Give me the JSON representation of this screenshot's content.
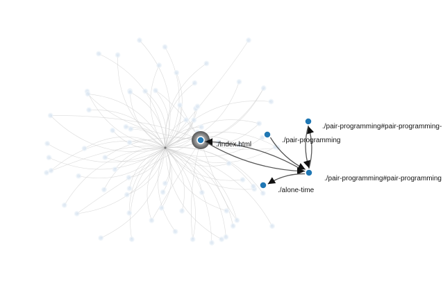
{
  "graph": {
    "colors": {
      "active_node": "#1f77b4",
      "faded_node": "#dbe7f3",
      "faded_edge": "#cfcfcf",
      "active_edge": "#555555",
      "focus_halo": "#6f6f6f"
    },
    "focus_node": "index",
    "nodes": [
      {
        "id": "index",
        "label": "./index.html"
      },
      {
        "id": "pair-programming",
        "label": "./pair-programming"
      },
      {
        "id": "pair-programming-anchor-1",
        "label": "./pair-programming#pair-programming-"
      },
      {
        "id": "pair-programming-anchor-2",
        "label": "./pair-programming#pair-programming"
      },
      {
        "id": "alone-time",
        "label": "./alone-time"
      }
    ],
    "edges": [
      {
        "from": "pair-programming-anchor-2",
        "to": "index"
      },
      {
        "from": "index",
        "to": "pair-programming-anchor-2"
      },
      {
        "from": "pair-programming",
        "to": "pair-programming-anchor-2"
      },
      {
        "from": "pair-programming-anchor-2",
        "to": "pair-programming-anchor-1"
      },
      {
        "from": "pair-programming-anchor-1",
        "to": "pair-programming-anchor-2"
      },
      {
        "from": "pair-programming-anchor-2",
        "to": "alone-time"
      }
    ],
    "faded_node_count": 70
  }
}
